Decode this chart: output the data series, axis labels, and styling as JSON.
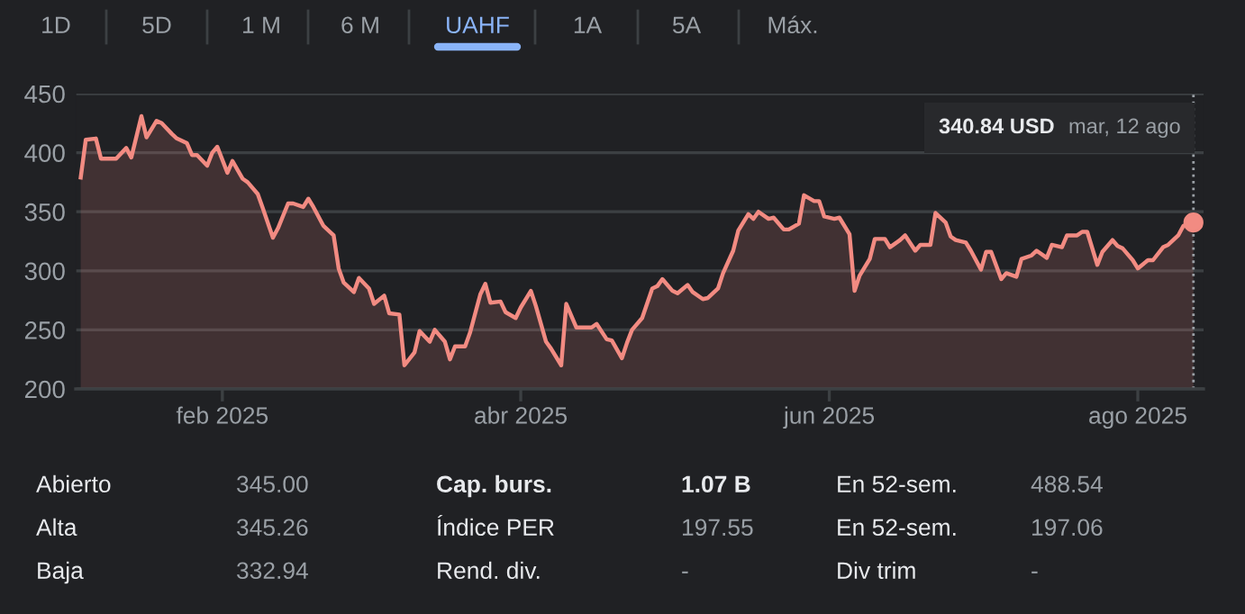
{
  "chart_data": {
    "type": "area",
    "xlim": [
      "2025-01-03",
      "2025-08-14"
    ],
    "ylim": [
      200,
      450
    ],
    "xticks": [
      {
        "value": "2025-02-01",
        "label": "feb 2025"
      },
      {
        "value": "2025-04-01",
        "label": "abr 2025"
      },
      {
        "value": "2025-06-01",
        "label": "jun 2025"
      },
      {
        "value": "2025-08-01",
        "label": "ago 2025"
      }
    ],
    "yticks": [
      200,
      250,
      300,
      350,
      400,
      450
    ],
    "grid": "y",
    "series": [
      {
        "color": "#f28b82",
        "x": [
          "2025-01-04",
          "2025-01-05",
          "2025-01-07",
          "2025-01-08",
          "2025-01-11",
          "2025-01-13",
          "2025-01-14",
          "2025-01-16",
          "2025-01-17",
          "2025-01-19",
          "2025-01-20",
          "2025-01-22",
          "2025-01-23",
          "2025-01-25",
          "2025-01-26",
          "2025-01-27",
          "2025-01-29",
          "2025-01-30",
          "2025-01-31",
          "2025-02-02",
          "2025-02-03",
          "2025-02-05",
          "2025-02-06",
          "2025-02-08",
          "2025-02-09",
          "2025-02-11",
          "2025-02-12",
          "2025-02-14",
          "2025-02-15",
          "2025-02-17",
          "2025-02-18",
          "2025-02-19",
          "2025-02-21",
          "2025-02-23",
          "2025-02-24",
          "2025-02-25",
          "2025-02-27",
          "2025-02-28",
          "2025-03-02",
          "2025-03-03",
          "2025-03-05",
          "2025-03-06",
          "2025-03-08",
          "2025-03-09",
          "2025-03-11",
          "2025-03-12",
          "2025-03-14",
          "2025-03-15",
          "2025-03-17",
          "2025-03-18",
          "2025-03-19",
          "2025-03-21",
          "2025-03-22",
          "2025-03-24",
          "2025-03-25",
          "2025-03-26",
          "2025-03-28",
          "2025-03-29",
          "2025-03-31",
          "2025-04-01",
          "2025-04-03",
          "2025-04-04",
          "2025-04-06",
          "2025-04-07",
          "2025-04-09",
          "2025-04-10",
          "2025-04-12",
          "2025-04-13",
          "2025-04-15",
          "2025-04-16",
          "2025-04-18",
          "2025-04-19",
          "2025-04-21",
          "2025-04-22",
          "2025-04-23",
          "2025-04-25",
          "2025-04-27",
          "2025-04-28",
          "2025-04-29",
          "2025-05-01",
          "2025-05-02",
          "2025-05-04",
          "2025-05-05",
          "2025-05-07",
          "2025-05-08",
          "2025-05-10",
          "2025-05-11",
          "2025-05-13",
          "2025-05-14",
          "2025-05-16",
          "2025-05-17",
          "2025-05-18",
          "2025-05-20",
          "2025-05-21",
          "2025-05-23",
          "2025-05-24",
          "2025-05-26",
          "2025-05-27",
          "2025-05-29",
          "2025-05-30",
          "2025-05-31",
          "2025-06-02",
          "2025-06-03",
          "2025-06-05",
          "2025-06-06",
          "2025-06-07",
          "2025-06-09",
          "2025-06-10",
          "2025-06-12",
          "2025-06-13",
          "2025-06-15",
          "2025-06-16",
          "2025-06-18",
          "2025-06-19",
          "2025-06-21",
          "2025-06-22",
          "2025-06-24",
          "2025-06-25",
          "2025-06-26",
          "2025-06-28",
          "2025-06-29",
          "2025-07-01",
          "2025-07-02",
          "2025-07-03",
          "2025-07-05",
          "2025-07-06",
          "2025-07-08",
          "2025-07-09",
          "2025-07-11",
          "2025-07-12",
          "2025-07-14",
          "2025-07-15",
          "2025-07-17",
          "2025-07-18",
          "2025-07-20",
          "2025-07-21",
          "2025-07-22",
          "2025-07-24",
          "2025-07-25",
          "2025-07-27",
          "2025-07-28",
          "2025-07-29",
          "2025-07-31",
          "2025-08-01",
          "2025-08-03",
          "2025-08-04",
          "2025-08-06",
          "2025-08-07",
          "2025-08-09",
          "2025-08-10",
          "2025-08-12"
        ],
        "values": [
          379,
          411,
          412,
          395,
          395,
          404,
          396,
          431,
          413,
          427,
          425,
          416,
          412,
          408,
          398,
          398,
          389,
          400,
          405,
          383,
          393,
          378,
          375,
          365,
          353,
          328,
          336,
          357,
          357,
          354,
          361,
          354,
          338,
          330,
          302,
          290,
          282,
          294,
          285,
          272,
          279,
          264,
          263,
          220,
          231,
          249,
          240,
          250,
          240,
          225,
          236,
          236,
          248,
          280,
          289,
          273,
          274,
          265,
          260,
          269,
          283,
          270,
          240,
          234,
          220,
          272,
          252,
          252,
          252,
          255,
          242,
          241,
          226,
          239,
          250,
          260,
          285,
          287,
          293,
          283,
          281,
          288,
          282,
          276,
          277,
          285,
          298,
          317,
          334,
          348,
          344,
          350,
          344,
          345,
          335,
          335,
          340,
          364,
          359,
          359,
          346,
          344,
          345,
          331,
          283,
          296,
          310,
          327,
          327,
          320,
          326,
          330,
          317,
          322,
          322,
          349,
          341,
          329,
          326,
          324,
          317,
          301,
          316,
          316,
          293,
          298,
          295,
          310,
          313,
          317,
          311,
          322,
          320,
          330,
          330,
          333,
          333,
          305,
          316,
          326,
          321,
          319,
          309,
          302,
          309,
          309,
          320,
          322,
          330,
          338,
          340.84
        ]
      }
    ],
    "ref_lines": [
      {
        "axis": "x",
        "value": "2025-08-12",
        "line_style": "dotted",
        "color": "#9aa0a6"
      }
    ],
    "annotations": [
      "340.84 USD",
      "mar, 12 ago",
      "1D",
      "5D",
      "1 M",
      "6 M",
      "UAHF",
      "1A",
      "5A",
      "Máx.",
      "Abierto",
      "345.00",
      "Cap. burs.",
      "1.07 B",
      "En 52-sem.",
      "488.54",
      "Alta",
      "345.26",
      "Índice PER",
      "197.55",
      "En 52-sem.",
      "197.06",
      "Baja",
      "332.94",
      "Rend. div.",
      "-",
      "Div trim",
      "-"
    ]
  }
}
